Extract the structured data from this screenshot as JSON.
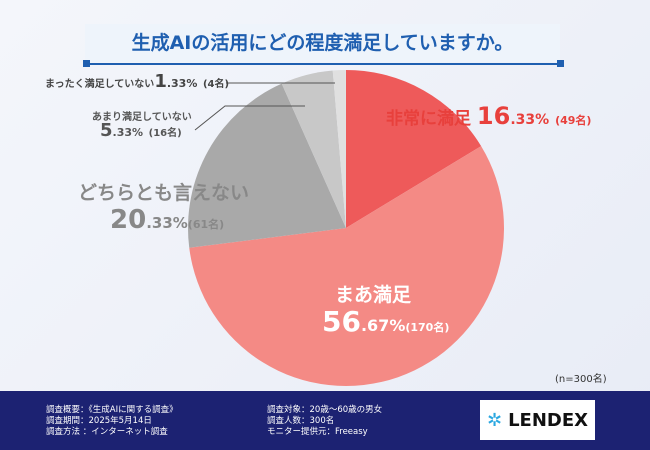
{
  "chart_data": {
    "type": "pie",
    "title": "生成AIの活用にどの程度満足していますか。",
    "slices": [
      {
        "label": "非常に満足",
        "percent": 16.33,
        "count": "49名",
        "color": "#ee5a5a"
      },
      {
        "label": "まあ満足",
        "percent": 56.67,
        "count": "170名",
        "color": "#f48a85"
      },
      {
        "label": "どちらとも言えない",
        "percent": 20.33,
        "count": "61名",
        "color": "#a9a9a9"
      },
      {
        "label": "あまり満足していない",
        "percent": 5.33,
        "count": "16名",
        "color": "#c8c8c8"
      },
      {
        "label": "まったく満足していない",
        "percent": 1.33,
        "count": "4名",
        "color": "#e0e0e0"
      }
    ],
    "labels": {
      "s0": {
        "int": "16",
        "dec": ".33%",
        "count": "(49名)"
      },
      "s1": {
        "int": "56",
        "dec": ".67%",
        "count": "(170名)"
      },
      "s2": {
        "int": "20",
        "dec": ".33%",
        "count": "(61名)"
      },
      "s3": {
        "int": "5",
        "dec": ".33%",
        "count": "(16名)"
      },
      "s4": {
        "int": "1",
        "dec": ".33%",
        "count": "(4名)"
      }
    },
    "note": "(n=300名)"
  },
  "footer": {
    "left": [
      "調査概要：《生成AIに関する調査》",
      "調査期間：2025年5月14日",
      "調査方法 ：インターネット調査"
    ],
    "right": [
      "調査対象：20歳〜60歳の男女",
      "調査人数：300名",
      "モニター提供元：Freeasy"
    ],
    "logo": "LENDEX"
  }
}
